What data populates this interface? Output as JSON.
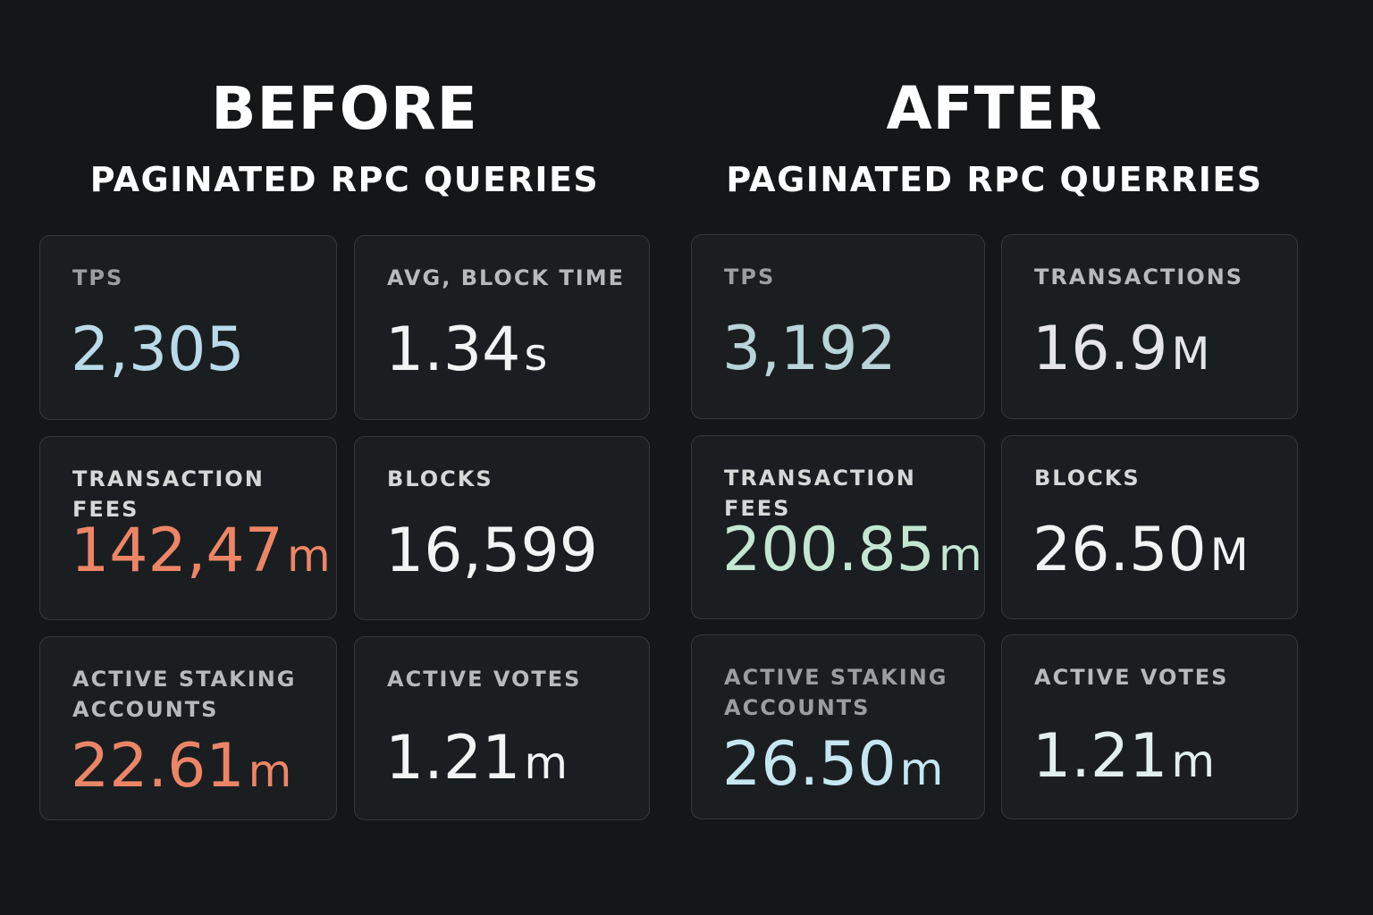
{
  "before": {
    "heading": "BEFORE",
    "subheading": "PAGINATED RPC QUERIES",
    "cards": [
      {
        "label": "TPS",
        "value": "2,305",
        "unit": ""
      },
      {
        "label": "AVG, BLOCK TIME",
        "value": "1.34",
        "unit": "s"
      },
      {
        "label": "TRANSACTION FEES",
        "value": "142,47",
        "unit": "m"
      },
      {
        "label": "BLOCKS",
        "value": "16,599",
        "unit": ""
      },
      {
        "label": "ACTIVE STAKING ACCOUNTS",
        "value": "22.61",
        "unit": "m"
      },
      {
        "label": "ACTIVE VOTES",
        "value": "1.21",
        "unit": "m"
      }
    ]
  },
  "after": {
    "heading": "AFTER",
    "subheading": "PAGINATED RPC QUERRIES",
    "cards": [
      {
        "label": "TPS",
        "value": "3,192",
        "unit": ""
      },
      {
        "label": "TRANSACTIONS",
        "value": "16.9",
        "unit": "M"
      },
      {
        "label": "TRANSACTION FEES",
        "value": "200.85",
        "unit": "m"
      },
      {
        "label": "BLOCKS",
        "value": "26.50",
        "unit": "M"
      },
      {
        "label": "ACTIVE STAKING ACCOUNTS",
        "value": "26.50",
        "unit": "m"
      },
      {
        "label": "ACTIVE VOTES",
        "value": "1.21",
        "unit": "m"
      }
    ]
  },
  "colors": {
    "background": "#141618",
    "card": "#1b1e20",
    "card_border": "#34383b",
    "value_white": "#f2f3f3",
    "value_blue": "#b9dbe9",
    "value_coral": "#ec8566",
    "value_mint": "#c3e6d3"
  }
}
